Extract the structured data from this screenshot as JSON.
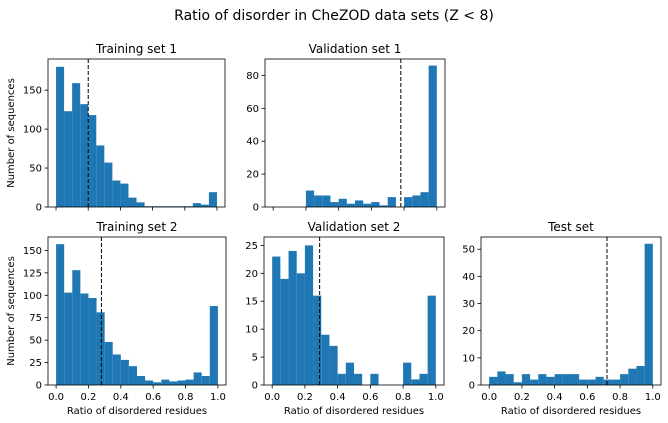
{
  "suptitle": "Ratio of disorder in CheZOD data sets (Z < 8)",
  "chart_data": [
    {
      "type": "bar",
      "title": "Training set 1",
      "xlabel": "",
      "ylabel": "Number of sequences",
      "xlim": [
        -0.05,
        1.05
      ],
      "ylim": [
        0,
        190
      ],
      "xticks": [
        0.0,
        0.2,
        0.4,
        0.6,
        0.8,
        1.0
      ],
      "yticks": [
        0,
        50,
        100,
        150
      ],
      "show_xtick_labels": false,
      "bin_width": 0.05,
      "bin_starts": [
        0.0,
        0.05,
        0.1,
        0.15,
        0.2,
        0.25,
        0.3,
        0.35,
        0.4,
        0.45,
        0.5,
        0.55,
        0.6,
        0.65,
        0.7,
        0.75,
        0.8,
        0.85,
        0.9,
        0.95
      ],
      "values": [
        180,
        123,
        159,
        132,
        118,
        79,
        57,
        34,
        30,
        12,
        6,
        1,
        1,
        1,
        1,
        1,
        1,
        5,
        3,
        19
      ],
      "threshold": 0.2
    },
    {
      "type": "bar",
      "title": "Validation set 1",
      "xlabel": "",
      "ylabel": "",
      "xlim": [
        -0.05,
        1.05
      ],
      "ylim": [
        0,
        90
      ],
      "xticks": [
        0.0,
        0.2,
        0.4,
        0.6,
        0.8,
        1.0
      ],
      "yticks": [
        0,
        20,
        40,
        60,
        80
      ],
      "show_xtick_labels": false,
      "bin_width": 0.05,
      "bin_starts": [
        0.0,
        0.05,
        0.1,
        0.15,
        0.2,
        0.25,
        0.3,
        0.35,
        0.4,
        0.45,
        0.5,
        0.55,
        0.6,
        0.65,
        0.7,
        0.75,
        0.8,
        0.85,
        0.9,
        0.95
      ],
      "values": [
        0,
        0,
        0,
        0,
        10,
        7,
        7,
        3,
        5,
        2,
        4,
        2,
        3,
        1,
        6,
        0,
        6,
        7,
        9,
        86
      ],
      "threshold": 0.78
    },
    {
      "type": "bar",
      "title": "Training set 2",
      "xlabel": "Ratio of disordered residues",
      "ylabel": "Number of sequences",
      "xlim": [
        -0.05,
        1.05
      ],
      "ylim": [
        0,
        165
      ],
      "xticks": [
        0.0,
        0.2,
        0.4,
        0.6,
        0.8,
        1.0
      ],
      "yticks": [
        0,
        25,
        50,
        75,
        100,
        125,
        150
      ],
      "show_xtick_labels": true,
      "bin_width": 0.05,
      "bin_starts": [
        0.0,
        0.05,
        0.1,
        0.15,
        0.2,
        0.25,
        0.3,
        0.35,
        0.4,
        0.45,
        0.5,
        0.55,
        0.6,
        0.65,
        0.7,
        0.75,
        0.8,
        0.85,
        0.9,
        0.95
      ],
      "values": [
        157,
        103,
        128,
        102,
        97,
        81,
        48,
        34,
        28,
        21,
        10,
        5,
        3,
        6,
        4,
        5,
        6,
        14,
        10,
        88
      ],
      "threshold": 0.28
    },
    {
      "type": "bar",
      "title": "Validation set 2",
      "xlabel": "Ratio of disordered residues",
      "ylabel": "",
      "xlim": [
        -0.05,
        1.05
      ],
      "ylim": [
        0,
        26.5
      ],
      "xticks": [
        0.0,
        0.2,
        0.4,
        0.6,
        0.8,
        1.0
      ],
      "yticks": [
        0,
        5,
        10,
        15,
        20,
        25
      ],
      "show_xtick_labels": true,
      "bin_width": 0.05,
      "bin_starts": [
        0.0,
        0.05,
        0.1,
        0.15,
        0.2,
        0.25,
        0.3,
        0.35,
        0.4,
        0.45,
        0.5,
        0.55,
        0.6,
        0.65,
        0.7,
        0.75,
        0.8,
        0.85,
        0.9,
        0.95
      ],
      "values": [
        23,
        19,
        24,
        20,
        25,
        16,
        9,
        7,
        2,
        4,
        2,
        0,
        2,
        0,
        0,
        0,
        4,
        1,
        2,
        16
      ],
      "threshold": 0.29
    },
    {
      "type": "bar",
      "title": "Test set",
      "xlabel": "Ratio of disordered residues",
      "ylabel": "",
      "xlim": [
        -0.05,
        1.05
      ],
      "ylim": [
        0,
        54.5
      ],
      "xticks": [
        0.0,
        0.2,
        0.4,
        0.6,
        0.8,
        1.0
      ],
      "yticks": [
        0,
        10,
        20,
        30,
        40,
        50
      ],
      "show_xtick_labels": true,
      "bin_width": 0.05,
      "bin_starts": [
        0.0,
        0.05,
        0.1,
        0.15,
        0.2,
        0.25,
        0.3,
        0.35,
        0.4,
        0.45,
        0.5,
        0.55,
        0.6,
        0.65,
        0.7,
        0.75,
        0.8,
        0.85,
        0.9,
        0.95
      ],
      "values": [
        3,
        5,
        4,
        1,
        4,
        2,
        4,
        3,
        4,
        4,
        4,
        2,
        2,
        3,
        2,
        2,
        4,
        6,
        7,
        52
      ],
      "threshold": 0.72
    }
  ],
  "colors": {
    "bar": "#1f77b4",
    "threshold_line": "#000000",
    "axes": "#000000"
  }
}
